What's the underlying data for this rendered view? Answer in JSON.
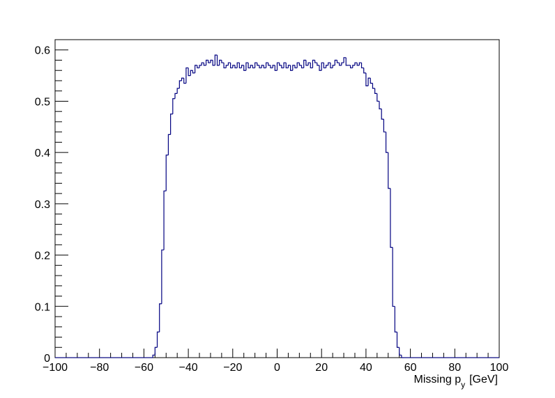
{
  "chart_data": {
    "type": "histogram",
    "x_label": {
      "text": "Missing p",
      "subscript": "y",
      "unit": "[GeV]"
    },
    "color": "#000080",
    "xlim": [
      -100,
      100
    ],
    "ylim": [
      0,
      0.62
    ],
    "xticks": [
      {
        "value": -100,
        "label": "−100"
      },
      {
        "value": -80,
        "label": "−80"
      },
      {
        "value": -60,
        "label": "−60"
      },
      {
        "value": -40,
        "label": "−40"
      },
      {
        "value": -20,
        "label": "−20"
      },
      0,
      20,
      40,
      60,
      80,
      100
    ],
    "yticks": [
      0,
      0.1,
      0.2,
      0.3,
      0.4,
      0.5,
      0.6
    ],
    "bins": [
      -100,
      -99,
      -98,
      -97,
      -96,
      -95,
      -94,
      -93,
      -92,
      -91,
      -90,
      -89,
      -88,
      -87,
      -86,
      -85,
      -84,
      -83,
      -82,
      -81,
      -80,
      -79,
      -78,
      -77,
      -76,
      -75,
      -74,
      -73,
      -72,
      -71,
      -70,
      -69,
      -68,
      -67,
      -66,
      -65,
      -64,
      -63,
      -62,
      -61,
      -60,
      -59,
      -58,
      -57,
      -56,
      -55,
      -54,
      -53,
      -52,
      -51,
      -50,
      -49,
      -48,
      -47,
      -46,
      -45,
      -44,
      -43,
      -42,
      -41,
      -40,
      -39,
      -38,
      -37,
      -36,
      -35,
      -34,
      -33,
      -32,
      -31,
      -30,
      -29,
      -28,
      -27,
      -26,
      -25,
      -24,
      -23,
      -22,
      -21,
      -20,
      -19,
      -18,
      -17,
      -16,
      -15,
      -14,
      -13,
      -12,
      -11,
      -10,
      -9,
      -8,
      -7,
      -6,
      -5,
      -4,
      -3,
      -2,
      -1,
      0,
      1,
      2,
      3,
      4,
      5,
      6,
      7,
      8,
      9,
      10,
      11,
      12,
      13,
      14,
      15,
      16,
      17,
      18,
      19,
      20,
      21,
      22,
      23,
      24,
      25,
      26,
      27,
      28,
      29,
      30,
      31,
      32,
      33,
      34,
      35,
      36,
      37,
      38,
      39,
      40,
      41,
      42,
      43,
      44,
      45,
      46,
      47,
      48,
      49,
      50,
      51,
      52,
      53,
      54,
      55,
      56,
      57,
      58,
      59,
      60,
      61,
      62,
      63,
      64,
      65,
      66,
      67,
      68,
      69,
      70,
      71,
      72,
      73,
      74,
      75,
      76,
      77,
      78,
      79,
      80,
      81,
      82,
      83,
      84,
      85,
      86,
      87,
      88,
      89,
      90,
      91,
      92,
      93,
      94,
      95,
      96,
      97,
      98,
      99,
      100
    ],
    "counts": [
      0,
      0,
      0,
      0,
      0,
      0,
      0,
      0,
      0,
      0,
      0,
      0,
      0,
      0,
      0,
      0,
      0,
      0,
      0,
      0,
      0,
      0,
      0,
      0,
      0,
      0,
      0,
      0,
      0,
      0,
      0,
      0,
      0,
      0,
      0,
      0,
      0,
      0,
      0,
      0,
      0,
      0,
      0,
      0,
      0.005,
      0.02,
      0.05,
      0.105,
      0.21,
      0.325,
      0.395,
      0.435,
      0.475,
      0.505,
      0.515,
      0.525,
      0.54,
      0.545,
      0.535,
      0.565,
      0.55,
      0.56,
      0.555,
      0.57,
      0.565,
      0.57,
      0.575,
      0.57,
      0.58,
      0.575,
      0.58,
      0.57,
      0.59,
      0.57,
      0.58,
      0.575,
      0.565,
      0.57,
      0.575,
      0.565,
      0.57,
      0.565,
      0.575,
      0.565,
      0.57,
      0.56,
      0.575,
      0.565,
      0.57,
      0.565,
      0.575,
      0.57,
      0.565,
      0.57,
      0.565,
      0.575,
      0.57,
      0.565,
      0.57,
      0.56,
      0.575,
      0.57,
      0.565,
      0.575,
      0.565,
      0.57,
      0.56,
      0.57,
      0.565,
      0.575,
      0.57,
      0.565,
      0.58,
      0.57,
      0.575,
      0.565,
      0.58,
      0.575,
      0.57,
      0.56,
      0.575,
      0.565,
      0.57,
      0.575,
      0.565,
      0.57,
      0.58,
      0.575,
      0.57,
      0.575,
      0.585,
      0.57,
      0.57,
      0.565,
      0.57,
      0.575,
      0.57,
      0.575,
      0.565,
      0.555,
      0.53,
      0.545,
      0.535,
      0.525,
      0.515,
      0.5,
      0.485,
      0.465,
      0.44,
      0.4,
      0.33,
      0.215,
      0.1,
      0.05,
      0.02,
      0.005,
      0,
      0,
      0,
      0,
      0,
      0,
      0,
      0,
      0,
      0,
      0,
      0,
      0,
      0,
      0,
      0,
      0,
      0,
      0,
      0,
      0,
      0,
      0,
      0,
      0,
      0,
      0,
      0,
      0,
      0,
      0,
      0,
      0,
      0,
      0,
      0,
      0,
      0,
      0,
      0,
      0,
      0,
      0,
      0
    ]
  }
}
